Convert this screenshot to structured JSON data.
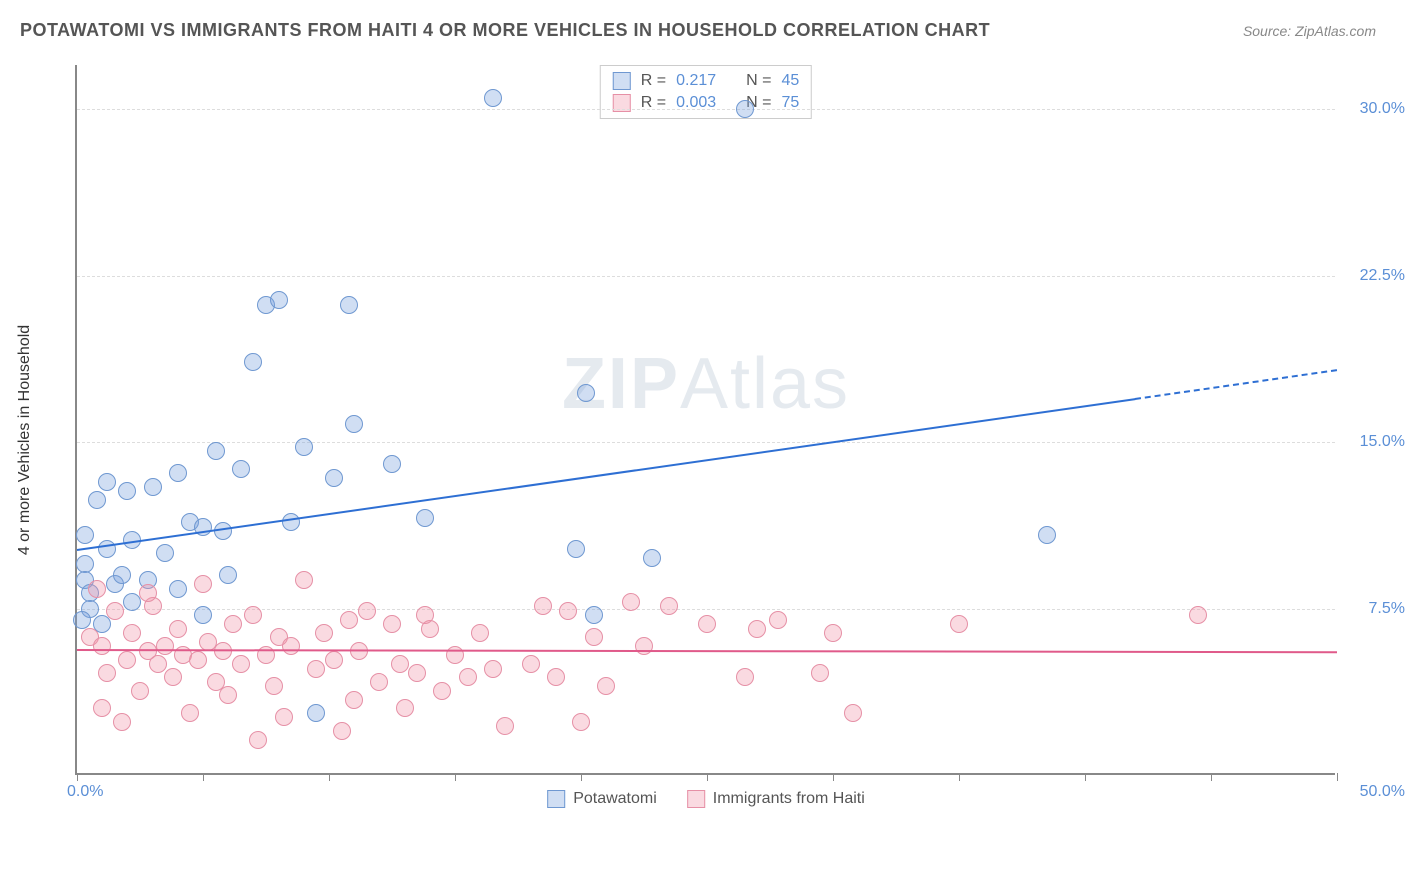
{
  "header": {
    "title": "POTAWATOMI VS IMMIGRANTS FROM HAITI 4 OR MORE VEHICLES IN HOUSEHOLD CORRELATION CHART",
    "source": "Source: ZipAtlas.com"
  },
  "watermark": {
    "bold": "ZIP",
    "thin": "Atlas"
  },
  "chart": {
    "type": "scatter",
    "y_axis_label": "4 or more Vehicles in Household",
    "background_color": "#ffffff",
    "grid_color": "#dddddd",
    "axis_color": "#888888",
    "xlim": [
      0,
      50
    ],
    "ylim": [
      0,
      32
    ],
    "x_tick_positions": [
      0,
      5,
      10,
      15,
      20,
      25,
      30,
      35,
      40,
      45,
      50
    ],
    "x_tick_labels": {
      "min": "0.0%",
      "max": "50.0%"
    },
    "y_gridlines": [
      7.5,
      15.0,
      22.5,
      30.0
    ],
    "y_tick_labels": [
      "7.5%",
      "15.0%",
      "22.5%",
      "30.0%"
    ],
    "marker_radius": 9,
    "series": [
      {
        "name": "Potawatomi",
        "fill": "rgba(120, 160, 220, 0.35)",
        "stroke": "#6f98d1",
        "line_color": "#2e6fd3",
        "R": "0.217",
        "N": "45",
        "trend": {
          "x1": 0,
          "y1": 10.2,
          "x2": 42,
          "y2": 17.0,
          "dash_to_x": 50,
          "dash_to_y": 18.3
        },
        "points": [
          [
            0.3,
            10.8
          ],
          [
            0.3,
            9.5
          ],
          [
            0.3,
            8.8
          ],
          [
            0.5,
            8.2
          ],
          [
            0.5,
            7.5
          ],
          [
            0.8,
            12.4
          ],
          [
            1.0,
            6.8
          ],
          [
            1.2,
            13.2
          ],
          [
            1.2,
            10.2
          ],
          [
            1.5,
            8.6
          ],
          [
            1.8,
            9.0
          ],
          [
            2.0,
            12.8
          ],
          [
            2.2,
            7.8
          ],
          [
            2.2,
            10.6
          ],
          [
            2.8,
            8.8
          ],
          [
            3.0,
            13.0
          ],
          [
            3.5,
            10.0
          ],
          [
            4.0,
            8.4
          ],
          [
            4.0,
            13.6
          ],
          [
            4.5,
            11.4
          ],
          [
            5.0,
            7.2
          ],
          [
            5.0,
            11.2
          ],
          [
            5.5,
            14.6
          ],
          [
            5.8,
            11.0
          ],
          [
            6.0,
            9.0
          ],
          [
            6.5,
            13.8
          ],
          [
            7.0,
            18.6
          ],
          [
            7.5,
            21.2
          ],
          [
            8.0,
            21.4
          ],
          [
            8.5,
            11.4
          ],
          [
            9.0,
            14.8
          ],
          [
            9.5,
            2.8
          ],
          [
            10.2,
            13.4
          ],
          [
            10.8,
            21.2
          ],
          [
            11.0,
            15.8
          ],
          [
            12.5,
            14.0
          ],
          [
            13.8,
            11.6
          ],
          [
            16.5,
            30.5
          ],
          [
            19.8,
            10.2
          ],
          [
            20.2,
            17.2
          ],
          [
            20.5,
            7.2
          ],
          [
            22.8,
            9.8
          ],
          [
            26.5,
            30.0
          ],
          [
            38.5,
            10.8
          ],
          [
            0.2,
            7.0
          ]
        ]
      },
      {
        "name": "Immigrants from Haiti",
        "fill": "rgba(240, 150, 170, 0.35)",
        "stroke": "#e690a6",
        "line_color": "#e05a8a",
        "R": "0.003",
        "N": "75",
        "trend": {
          "x1": 0,
          "y1": 5.7,
          "x2": 50,
          "y2": 5.6
        },
        "points": [
          [
            0.5,
            6.2
          ],
          [
            0.8,
            8.4
          ],
          [
            1.0,
            5.8
          ],
          [
            1.2,
            4.6
          ],
          [
            1.5,
            7.4
          ],
          [
            1.8,
            2.4
          ],
          [
            2.0,
            5.2
          ],
          [
            2.2,
            6.4
          ],
          [
            2.5,
            3.8
          ],
          [
            2.8,
            5.6
          ],
          [
            3.0,
            7.6
          ],
          [
            3.2,
            5.0
          ],
          [
            3.5,
            5.8
          ],
          [
            3.8,
            4.4
          ],
          [
            4.0,
            6.6
          ],
          [
            4.2,
            5.4
          ],
          [
            4.5,
            2.8
          ],
          [
            4.8,
            5.2
          ],
          [
            5.0,
            8.6
          ],
          [
            5.2,
            6.0
          ],
          [
            5.5,
            4.2
          ],
          [
            5.8,
            5.6
          ],
          [
            6.0,
            3.6
          ],
          [
            6.5,
            5.0
          ],
          [
            7.0,
            7.2
          ],
          [
            7.2,
            1.6
          ],
          [
            7.5,
            5.4
          ],
          [
            7.8,
            4.0
          ],
          [
            8.0,
            6.2
          ],
          [
            8.2,
            2.6
          ],
          [
            8.5,
            5.8
          ],
          [
            9.0,
            8.8
          ],
          [
            9.5,
            4.8
          ],
          [
            9.8,
            6.4
          ],
          [
            10.2,
            5.2
          ],
          [
            10.5,
            2.0
          ],
          [
            10.8,
            7.0
          ],
          [
            11.0,
            3.4
          ],
          [
            11.2,
            5.6
          ],
          [
            11.5,
            7.4
          ],
          [
            12.0,
            4.2
          ],
          [
            12.5,
            6.8
          ],
          [
            12.8,
            5.0
          ],
          [
            13.0,
            3.0
          ],
          [
            13.5,
            4.6
          ],
          [
            14.0,
            6.6
          ],
          [
            14.5,
            3.8
          ],
          [
            15.0,
            5.4
          ],
          [
            15.5,
            4.4
          ],
          [
            16.0,
            6.4
          ],
          [
            16.5,
            4.8
          ],
          [
            17.0,
            2.2
          ],
          [
            18.0,
            5.0
          ],
          [
            18.5,
            7.6
          ],
          [
            19.0,
            4.4
          ],
          [
            19.5,
            7.4
          ],
          [
            20.0,
            2.4
          ],
          [
            20.5,
            6.2
          ],
          [
            21.0,
            4.0
          ],
          [
            22.0,
            7.8
          ],
          [
            22.5,
            5.8
          ],
          [
            23.5,
            7.6
          ],
          [
            25.0,
            6.8
          ],
          [
            26.5,
            4.4
          ],
          [
            27.0,
            6.6
          ],
          [
            27.8,
            7.0
          ],
          [
            29.5,
            4.6
          ],
          [
            30.0,
            6.4
          ],
          [
            30.8,
            2.8
          ],
          [
            35.0,
            6.8
          ],
          [
            44.5,
            7.2
          ],
          [
            1.0,
            3.0
          ],
          [
            2.8,
            8.2
          ],
          [
            6.2,
            6.8
          ],
          [
            13.8,
            7.2
          ]
        ]
      }
    ]
  },
  "legend": {
    "series1": "Potawatomi",
    "series2": "Immigrants from Haiti"
  }
}
